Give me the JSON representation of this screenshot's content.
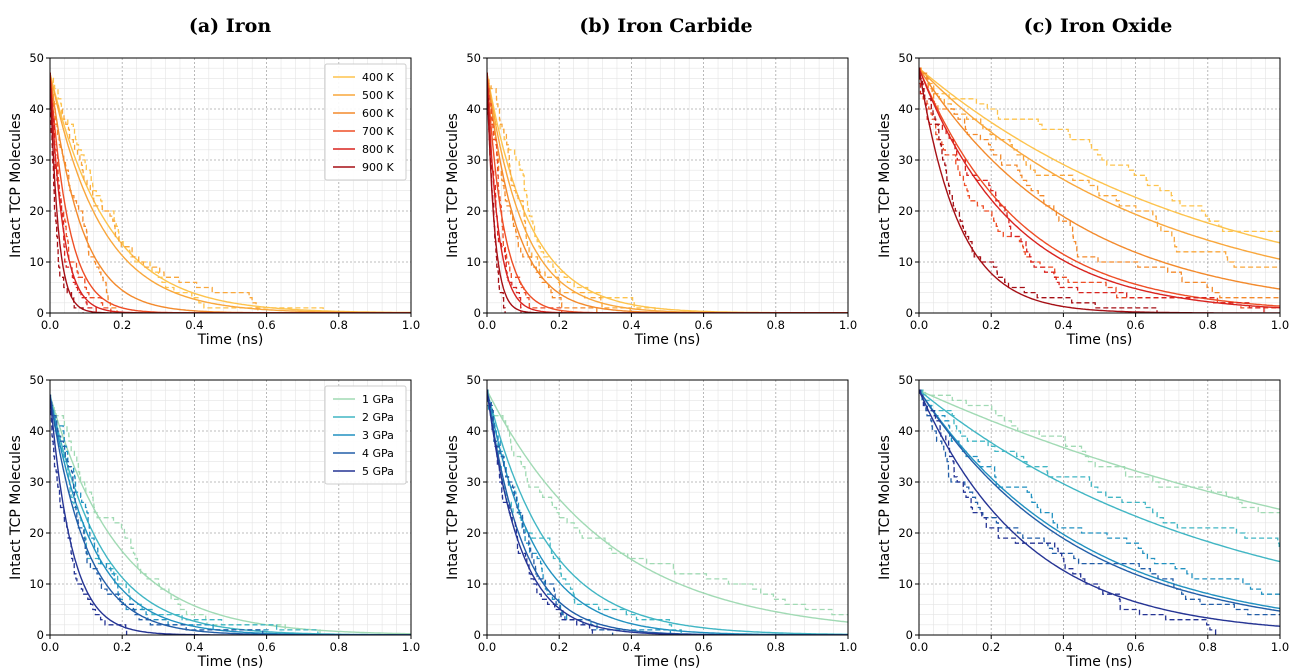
{
  "column_titles": [
    "(a) Iron",
    "(b) Iron Carbide",
    "(c) Iron Oxide"
  ],
  "chart_data": [
    {
      "type": "line",
      "panel": "top-left",
      "title": "(a) Iron",
      "xlabel": "Time (ns)",
      "ylabel": "Intact TCP Molecules",
      "xlim": [
        0,
        1.0
      ],
      "ylim": [
        0,
        50
      ],
      "xticks": [
        "0.0",
        "0.2",
        "0.4",
        "0.6",
        "0.8",
        "1.0"
      ],
      "yticks": [
        "0",
        "10",
        "20",
        "30",
        "40",
        "50"
      ],
      "grid": true,
      "legend": "top-right",
      "n0": 47,
      "series": [
        {
          "name": "400 K",
          "color": "#fdc34d",
          "tau": 0.16
        },
        {
          "name": "500 K",
          "color": "#f9a73c",
          "tau": 0.14
        },
        {
          "name": "600 K",
          "color": "#f38a2c",
          "tau": 0.085
        },
        {
          "name": "700 K",
          "color": "#ee4e26",
          "tau": 0.052
        },
        {
          "name": "800 K",
          "color": "#d9231f",
          "tau": 0.035
        },
        {
          "name": "900 K",
          "color": "#a50f15",
          "tau": 0.022
        }
      ]
    },
    {
      "type": "line",
      "panel": "top-middle",
      "title": "(b) Iron Carbide",
      "xlabel": "Time (ns)",
      "ylabel": "Intact TCP Molecules",
      "xlim": [
        0,
        1.0
      ],
      "ylim": [
        0,
        50
      ],
      "xticks": [
        "0.0",
        "0.2",
        "0.4",
        "0.6",
        "0.8",
        "1.0"
      ],
      "yticks": [
        "0",
        "10",
        "20",
        "30",
        "40",
        "50"
      ],
      "grid": true,
      "n0": 47,
      "series": [
        {
          "name": "400 K",
          "color": "#fdc34d",
          "tau": 0.12
        },
        {
          "name": "500 K",
          "color": "#f9a73c",
          "tau": 0.1
        },
        {
          "name": "600 K",
          "color": "#f38a2c",
          "tau": 0.08
        },
        {
          "name": "700 K",
          "color": "#ee4e26",
          "tau": 0.045
        },
        {
          "name": "800 K",
          "color": "#d9231f",
          "tau": 0.03
        },
        {
          "name": "900 K",
          "color": "#a50f15",
          "tau": 0.02
        }
      ]
    },
    {
      "type": "line",
      "panel": "top-right",
      "title": "(c) Iron Oxide",
      "xlabel": "Time (ns)",
      "ylabel": "Intact TCP Molecules",
      "xlim": [
        0,
        1.0
      ],
      "ylim": [
        0,
        50
      ],
      "xticks": [
        "0.0",
        "0.2",
        "0.4",
        "0.6",
        "0.8",
        "1.0"
      ],
      "yticks": [
        "0",
        "10",
        "20",
        "30",
        "40",
        "50"
      ],
      "grid": true,
      "n0": 48,
      "series": [
        {
          "name": "400 K",
          "color": "#fdc34d",
          "tau": 0.8
        },
        {
          "name": "500 K",
          "color": "#f9a73c",
          "tau": 0.66
        },
        {
          "name": "600 K",
          "color": "#f38a2c",
          "tau": 0.43
        },
        {
          "name": "700 K",
          "color": "#ee4e26",
          "tau": 0.28
        },
        {
          "name": "800 K",
          "color": "#d9231f",
          "tau": 0.26
        },
        {
          "name": "900 K",
          "color": "#a50f15",
          "tau": 0.11
        }
      ]
    },
    {
      "type": "line",
      "panel": "bottom-left",
      "xlabel": "Time (ns)",
      "ylabel": "Intact TCP Molecules",
      "xlim": [
        0,
        1.0
      ],
      "ylim": [
        0,
        50
      ],
      "xticks": [
        "0.0",
        "0.2",
        "0.4",
        "0.6",
        "0.8",
        "1.0"
      ],
      "yticks": [
        "0",
        "10",
        "20",
        "30",
        "40",
        "50"
      ],
      "grid": true,
      "legend": "top-right",
      "n0": 47,
      "series": [
        {
          "name": "1 GPa",
          "color": "#a1dab4",
          "tau": 0.19
        },
        {
          "name": "2 GPa",
          "color": "#41b6c4",
          "tau": 0.14
        },
        {
          "name": "3 GPa",
          "color": "#2191c0",
          "tau": 0.12
        },
        {
          "name": "4 GPa",
          "color": "#225ea8",
          "tau": 0.1
        },
        {
          "name": "5 GPa",
          "color": "#253494",
          "tau": 0.06
        }
      ]
    },
    {
      "type": "line",
      "panel": "bottom-middle",
      "xlabel": "Time (ns)",
      "ylabel": "Intact TCP Molecules",
      "xlim": [
        0,
        1.0
      ],
      "ylim": [
        0,
        50
      ],
      "xticks": [
        "0.0",
        "0.2",
        "0.4",
        "0.6",
        "0.8",
        "1.0"
      ],
      "yticks": [
        "0",
        "10",
        "20",
        "30",
        "40",
        "50"
      ],
      "grid": true,
      "n0": 48,
      "series": [
        {
          "name": "1 GPa",
          "color": "#a1dab4",
          "tau": 0.34
        },
        {
          "name": "2 GPa",
          "color": "#41b6c4",
          "tau": 0.17
        },
        {
          "name": "3 GPa",
          "color": "#2191c0",
          "tau": 0.13
        },
        {
          "name": "4 GPa",
          "color": "#225ea8",
          "tau": 0.1
        },
        {
          "name": "5 GPa",
          "color": "#253494",
          "tau": 0.09
        }
      ]
    },
    {
      "type": "line",
      "panel": "bottom-right",
      "xlabel": "Time (ns)",
      "ylabel": "Intact TCP Molecules",
      "xlim": [
        0,
        1.0
      ],
      "ylim": [
        0,
        50
      ],
      "xticks": [
        "0.0",
        "0.2",
        "0.4",
        "0.6",
        "0.8",
        "1.0"
      ],
      "yticks": [
        "0",
        "10",
        "20",
        "30",
        "40",
        "50"
      ],
      "grid": true,
      "n0": 48,
      "series": [
        {
          "name": "1 GPa",
          "color": "#a1dab4",
          "tau": 1.5
        },
        {
          "name": "2 GPa",
          "color": "#41b6c4",
          "tau": 0.83
        },
        {
          "name": "3 GPa",
          "color": "#2191c0",
          "tau": 0.45
        },
        {
          "name": "4 GPa",
          "color": "#225ea8",
          "tau": 0.43
        },
        {
          "name": "5 GPa",
          "color": "#253494",
          "tau": 0.3
        }
      ]
    }
  ]
}
